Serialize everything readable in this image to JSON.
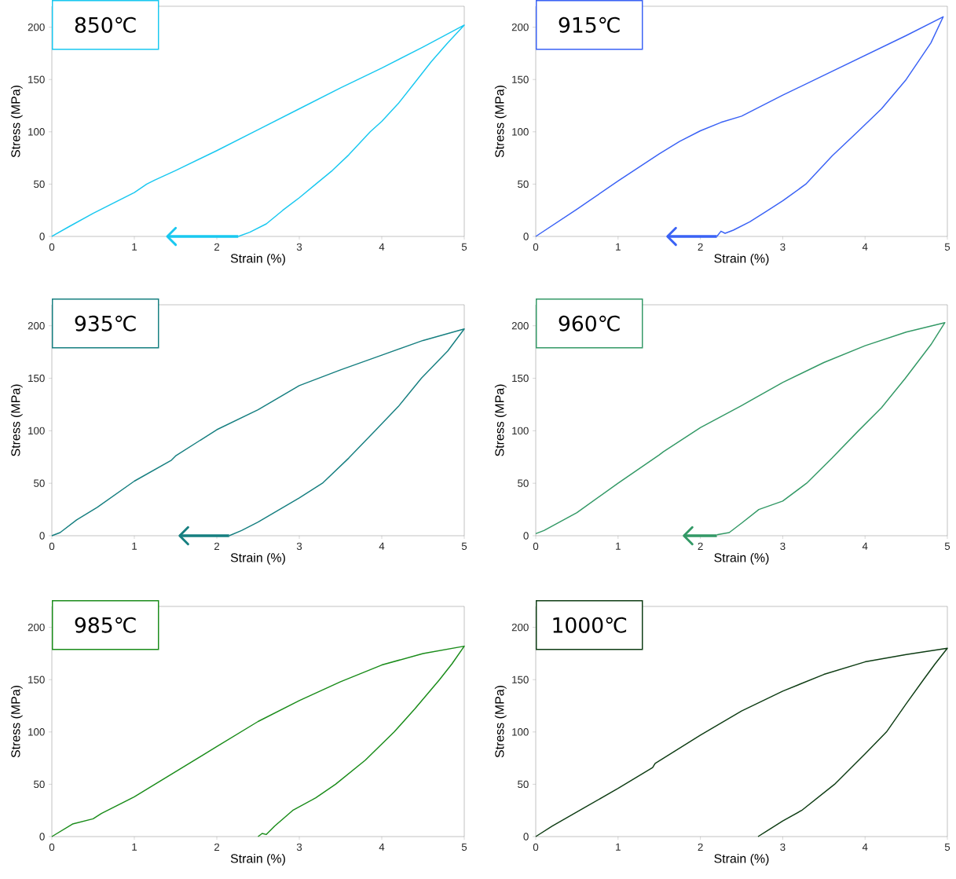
{
  "chart_data": [
    {
      "type": "line",
      "title": "850℃",
      "xlabel": "Strain (%)",
      "ylabel": "Stress (MPa)",
      "xlim": [
        0,
        5
      ],
      "ylim": [
        0,
        220
      ],
      "xticks": [
        0,
        1,
        2,
        3,
        4,
        5
      ],
      "yticks": [
        0,
        50,
        100,
        150,
        200
      ],
      "series": [
        {
          "color": "#19c8f0",
          "x": [
            0,
            0.2,
            0.5,
            0.7,
            1,
            1.15,
            1.25,
            1.5,
            2,
            2.5,
            3,
            3.5,
            4,
            4.5,
            5,
            4.8,
            4.6,
            4.43,
            4.2,
            4,
            3.86,
            3.6,
            3.4,
            3.2,
            3,
            2.8,
            2.6,
            2.4,
            2.26
          ],
          "values": [
            0,
            9,
            22,
            30,
            42,
            50,
            54,
            63,
            82,
            102,
            122,
            142,
            161,
            181,
            202,
            185,
            167,
            150,
            127,
            110,
            100,
            78,
            63,
            50,
            37,
            25,
            12,
            4,
            0
          ]
        },
        {
          "color": "#19c8f0",
          "x": [
            2.26,
            1.4
          ],
          "values": [
            0,
            0
          ]
        }
      ]
    },
    {
      "type": "line",
      "title": "915℃",
      "xlabel": "Strain (%)",
      "ylabel": "Stress (MPa)",
      "xlim": [
        0,
        5
      ],
      "ylim": [
        0,
        220
      ],
      "xticks": [
        0,
        1,
        2,
        3,
        4,
        5
      ],
      "yticks": [
        0,
        50,
        100,
        150,
        200
      ],
      "series": [
        {
          "color": "#3a62f5",
          "x": [
            0,
            0.5,
            1,
            1.5,
            1.75,
            2,
            2.25,
            2.5,
            3,
            3.5,
            4,
            4.5,
            4.95,
            4.8,
            4.5,
            4.2,
            3.91,
            3.6,
            3.28,
            3,
            2.8,
            2.6,
            2.4,
            2.3,
            2.25,
            2.2
          ],
          "values": [
            0,
            26,
            53,
            79,
            91,
            101,
            109,
            115,
            135,
            154,
            173,
            192,
            210,
            185,
            150,
            122,
            100,
            77,
            50,
            34,
            24,
            14,
            6,
            3,
            5,
            0
          ]
        },
        {
          "color": "#3a62f5",
          "x": [
            2.2,
            1.6
          ],
          "values": [
            0,
            0
          ]
        }
      ]
    },
    {
      "type": "line",
      "title": "935℃",
      "xlabel": "Strain (%)",
      "ylabel": "Stress (MPa)",
      "xlim": [
        0,
        5
      ],
      "ylim": [
        0,
        220
      ],
      "xticks": [
        0,
        1,
        2,
        3,
        4,
        5
      ],
      "yticks": [
        0,
        50,
        100,
        150,
        200
      ],
      "series": [
        {
          "color": "#167f80",
          "x": [
            0,
            0.1,
            0.3,
            0.55,
            1,
            1.45,
            1.5,
            2,
            2.5,
            3,
            3.5,
            4,
            4.5,
            5,
            4.8,
            4.48,
            4.2,
            3.92,
            3.6,
            3.28,
            3,
            2.76,
            2.5,
            2.3,
            2.15
          ],
          "values": [
            0,
            3,
            15,
            27,
            52,
            72,
            76,
            101,
            120,
            143,
            158,
            172,
            186,
            197,
            176,
            150,
            123,
            100,
            74,
            50,
            36,
            25,
            13,
            5,
            0
          ]
        },
        {
          "color": "#167f80",
          "x": [
            2.15,
            1.55
          ],
          "values": [
            0,
            0
          ]
        }
      ]
    },
    {
      "type": "line",
      "title": "960℃",
      "xlabel": "Strain (%)",
      "ylabel": "Stress (MPa)",
      "xlim": [
        0,
        5
      ],
      "ylim": [
        0,
        220
      ],
      "xticks": [
        0,
        1,
        2,
        3,
        4,
        5
      ],
      "yticks": [
        0,
        50,
        100,
        150,
        200
      ],
      "series": [
        {
          "color": "#339966",
          "x": [
            0,
            0.1,
            0.5,
            1,
            1.5,
            1.55,
            2,
            2.5,
            3,
            3.5,
            4,
            4.5,
            4.97,
            4.8,
            4.49,
            4.2,
            3.92,
            3.6,
            3.29,
            3,
            2.71,
            2.5,
            2.35,
            2.2
          ],
          "values": [
            2,
            5,
            22,
            50,
            77,
            80,
            103,
            124,
            146,
            165,
            181,
            194,
            203,
            182,
            150,
            122,
            100,
            74,
            50,
            33,
            25,
            12,
            3,
            1
          ]
        },
        {
          "color": "#339966",
          "x": [
            2.2,
            1.8
          ],
          "values": [
            0,
            0
          ]
        }
      ]
    },
    {
      "type": "line",
      "title": "985℃",
      "xlabel": "Strain (%)",
      "ylabel": "Stress (MPa)",
      "xlim": [
        0,
        5
      ],
      "ylim": [
        0,
        220
      ],
      "xticks": [
        0,
        1,
        2,
        3,
        4,
        5
      ],
      "yticks": [
        0,
        50,
        100,
        150,
        200
      ],
      "series": [
        {
          "color": "#1a8c1a",
          "x": [
            0,
            0.25,
            0.5,
            0.6,
            1,
            1.5,
            2,
            2.5,
            3,
            3.5,
            4,
            4.5,
            5,
            4.85,
            4.7,
            4.4,
            4.15,
            3.8,
            3.44,
            3.2,
            2.92,
            2.7,
            2.6,
            2.55,
            2.5
          ],
          "values": [
            0,
            12,
            17,
            22,
            38,
            62,
            86,
            110,
            130,
            148,
            164,
            175,
            182,
            165,
            150,
            122,
            100,
            73,
            50,
            37,
            25,
            10,
            2,
            3,
            0
          ]
        }
      ]
    },
    {
      "type": "line",
      "title": "1000℃",
      "xlabel": "Strain (%)",
      "ylabel": "Stress (MPa)",
      "xlim": [
        0,
        5
      ],
      "ylim": [
        0,
        220
      ],
      "xticks": [
        0,
        1,
        2,
        3,
        4,
        5
      ],
      "yticks": [
        0,
        50,
        100,
        150,
        200
      ],
      "series": [
        {
          "color": "#0e3d14",
          "x": [
            0,
            0.2,
            0.6,
            1,
            1.42,
            1.45,
            2,
            2.5,
            3,
            3.5,
            4,
            4.5,
            5,
            4.85,
            4.71,
            4.5,
            4.26,
            4,
            3.63,
            3.23,
            3,
            2.8,
            2.7
          ],
          "values": [
            0,
            10,
            28,
            46,
            66,
            70,
            97,
            120,
            139,
            155,
            167,
            174,
            180,
            165,
            150,
            127,
            100,
            79,
            50,
            25,
            15,
            5,
            0
          ]
        }
      ]
    }
  ]
}
